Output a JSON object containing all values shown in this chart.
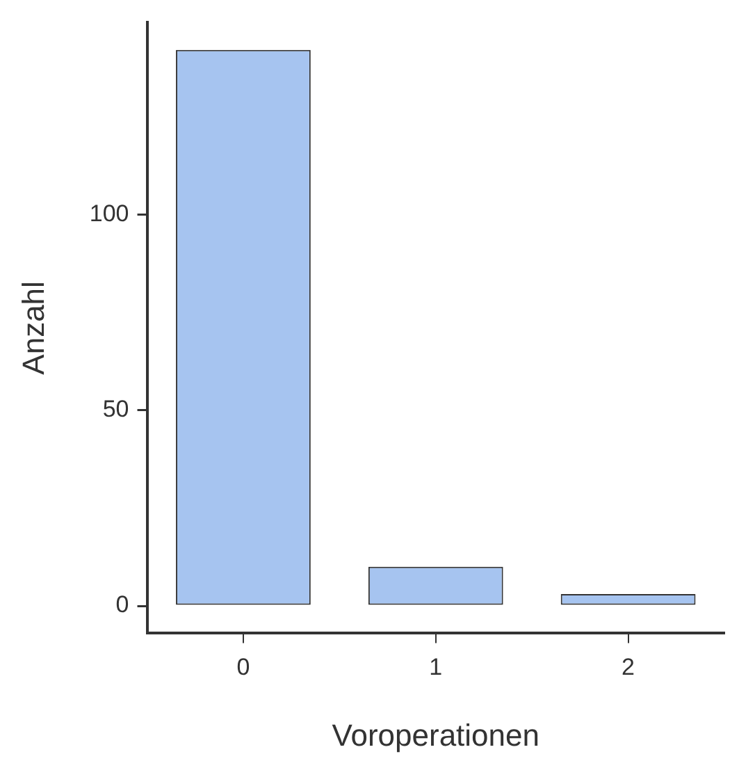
{
  "chart_data": {
    "type": "bar",
    "xlabel": "Voroperationen",
    "ylabel": "Anzahl",
    "categories": [
      "0",
      "1",
      "2"
    ],
    "values": [
      142,
      10,
      3
    ],
    "color": "#a6c4f0",
    "ylim": [
      -7,
      149
    ],
    "yticks": [
      0,
      50,
      100
    ],
    "grid": false,
    "legend": false
  }
}
